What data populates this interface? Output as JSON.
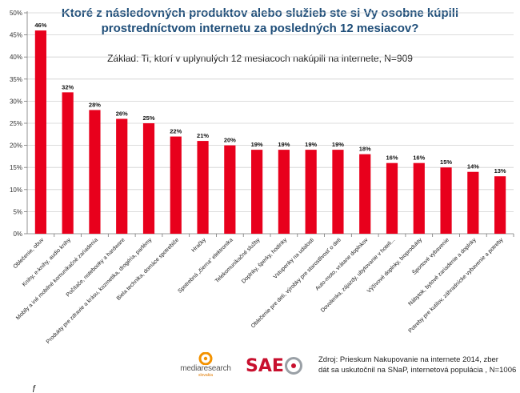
{
  "title": "Ktoré z následovných produktov alebo služieb ste si Vy osobne kúpili prostredníctvom internetu za posledných 12 mesiacov?",
  "subtitle": "Základ: Ti, ktorí v uplynulých 12 mesiacoch nakúpili na internete, N=909",
  "source_line1": "Zdroj:  Prieskum Nakupovanie na internete 2014, zber",
  "source_line2": "dát sa uskutočnil na SNaP, internetová populácia , N=1006",
  "logos": {
    "mediaresearch": "mediaresearch",
    "mediaresearch_sub": "slovakia",
    "saeo": "SAE"
  },
  "colors": {
    "bar": "#e8001c",
    "title": "#1f4e79",
    "grid": "#d0d0d0"
  },
  "chart_data": {
    "type": "bar",
    "categories": [
      "Oblečenie, obuv",
      "Knihy, e-knihy, audio knihy",
      "Mobily a iné mobilné komunikačné zariadenia",
      "Počítače, notebooky a hardware",
      "Produkty pre zdravie a krásu, kozmetika, drogéria, parfémy",
      "Biela technika, domáce spotrebiče",
      "Hračky",
      "Spotrebná „čierna“ elektronika",
      "Telekomunikačné služby",
      "Doplnky, šperky, hodinky",
      "Vstupenky na udalosti",
      "Oblečenie pre deti, výrobky pre starostlivosť o deti",
      "Auto-moto, vrátane doplnkov",
      "Dovolenka, zájazdy, ubytovanie v hoteli...",
      "Výživové doplnky, bioprodukty",
      "Športové vybavenie",
      "Nábytok, bytové zariadenie a doplnky",
      "Potreby pre kutilov, záhradnícke vybavenie a potreby"
    ],
    "values": [
      46,
      32,
      28,
      26,
      25,
      22,
      21,
      20,
      19,
      19,
      19,
      19,
      18,
      16,
      16,
      15,
      14,
      13
    ],
    "data_labels": [
      "46%",
      "32%",
      "28%",
      "26%",
      "25%",
      "22%",
      "21%",
      "20%",
      "19%",
      "19%",
      "19%",
      "19%",
      "18%",
      "16%",
      "16%",
      "15%",
      "14%",
      "13%"
    ],
    "y_ticks": [
      "0%",
      "5%",
      "10%",
      "15%",
      "20%",
      "25%",
      "30%",
      "35%",
      "40%",
      "45%",
      "50%"
    ],
    "ylim": [
      0,
      50
    ],
    "grid": true,
    "legend": "none"
  }
}
